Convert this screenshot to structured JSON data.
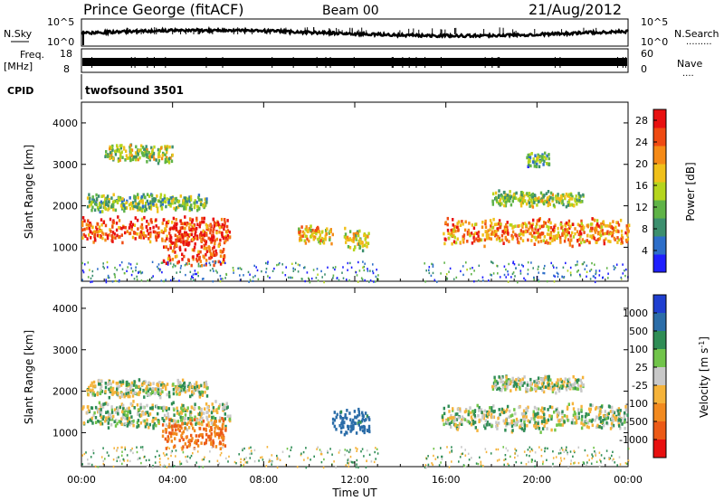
{
  "header": {
    "station": "Prince George (fitACF)",
    "beam": "Beam 00",
    "date": "21/Aug/2012"
  },
  "left_labels": {
    "nsky": "N.Sky",
    "nsky_top": "10^5",
    "nsky_bottom": "10^0",
    "freq": "Freq.",
    "freq_unit": "[MHz]",
    "freq_top": "18",
    "freq_bottom": "8",
    "cpid": "CPID"
  },
  "right_labels": {
    "nsearch": "N.Search",
    "nsearch_top": "10^5",
    "nsearch_bottom": "10^0",
    "nave": "Nave",
    "nave_top": "60",
    "nave_bottom": "0"
  },
  "cpid_value": "twofsound 3501",
  "colors": {
    "power_scale": [
      "#1f1fff",
      "#2d6ec9",
      "#3c8f6e",
      "#5fb347",
      "#b5d51d",
      "#f0c01a",
      "#f58a16",
      "#ef4a12",
      "#e81010"
    ],
    "velocity_scale": [
      "#1f3fd0",
      "#2b6da8",
      "#2f8d55",
      "#71c44a",
      "#c8c8c8",
      "#f5b33a",
      "#f28a1f",
      "#ec5a16",
      "#e81010"
    ]
  },
  "chart_data": [
    {
      "type": "heatmap",
      "name": "power-panel",
      "xlabel": "",
      "ylabel": "Slant Range [km]",
      "x_range": [
        "00:00",
        "24:00"
      ],
      "ylim": [
        180,
        4500
      ],
      "yticks": [
        "1000",
        "2000",
        "3000",
        "4000"
      ],
      "colorbar": {
        "label": "Power [dB]",
        "ticks": [
          "4",
          "8",
          "12",
          "16",
          "20",
          "24",
          "28"
        ],
        "range": [
          0,
          30
        ]
      },
      "features": [
        {
          "t_start": 0.0,
          "t_end": 6.5,
          "range_km": 1450,
          "width_km": 300,
          "level": 25
        },
        {
          "t_start": 0.2,
          "t_end": 5.5,
          "range_km": 2100,
          "width_km": 200,
          "level": 12
        },
        {
          "t_start": 3.5,
          "t_end": 6.3,
          "range_km": 1000,
          "width_km": 350,
          "level": 26
        },
        {
          "t_start": 1.0,
          "t_end": 4.0,
          "range_km": 3300,
          "width_km": 200,
          "level": 14
        },
        {
          "t_start": 9.5,
          "t_end": 11.0,
          "range_km": 1350,
          "width_km": 200,
          "level": 18
        },
        {
          "t_start": 11.5,
          "t_end": 12.6,
          "range_km": 1200,
          "width_km": 250,
          "level": 16
        },
        {
          "t_start": 15.8,
          "t_end": 24.0,
          "range_km": 1400,
          "width_km": 300,
          "level": 22
        },
        {
          "t_start": 18.0,
          "t_end": 22.0,
          "range_km": 2200,
          "width_km": 180,
          "level": 14
        },
        {
          "t_start": 19.5,
          "t_end": 20.5,
          "range_km": 3150,
          "width_km": 180,
          "level": 10
        }
      ]
    },
    {
      "type": "heatmap",
      "name": "velocity-panel",
      "xlabel": "Time UT",
      "ylabel": "Slant Range [km]",
      "x_range": [
        "00:00",
        "24:00"
      ],
      "xticks": [
        "00:00",
        "04:00",
        "08:00",
        "12:00",
        "16:00",
        "20:00",
        "00:00"
      ],
      "ylim": [
        180,
        4500
      ],
      "yticks": [
        "1000",
        "2000",
        "3000",
        "4000"
      ],
      "colorbar": {
        "label": "Velocity [m s^-1]",
        "ticks": [
          "1000",
          "500",
          "100",
          "25",
          "-25",
          "-100",
          "-500",
          "-1000"
        ]
      },
      "features": [
        {
          "t_start": 0.0,
          "t_end": 6.5,
          "range_km": 1450,
          "width_km": 300,
          "velocity": 0
        },
        {
          "t_start": 0.2,
          "t_end": 5.5,
          "range_km": 2100,
          "width_km": 200,
          "velocity": 0
        },
        {
          "t_start": 3.5,
          "t_end": 6.3,
          "range_km": 1000,
          "width_km": 350,
          "velocity": -300
        },
        {
          "t_start": 11.0,
          "t_end": 12.6,
          "range_km": 1300,
          "width_km": 300,
          "velocity": 150
        },
        {
          "t_start": 15.8,
          "t_end": 24.0,
          "range_km": 1400,
          "width_km": 300,
          "velocity": 0
        },
        {
          "t_start": 18.0,
          "t_end": 22.0,
          "range_km": 2200,
          "width_km": 180,
          "velocity": 0
        }
      ]
    }
  ]
}
